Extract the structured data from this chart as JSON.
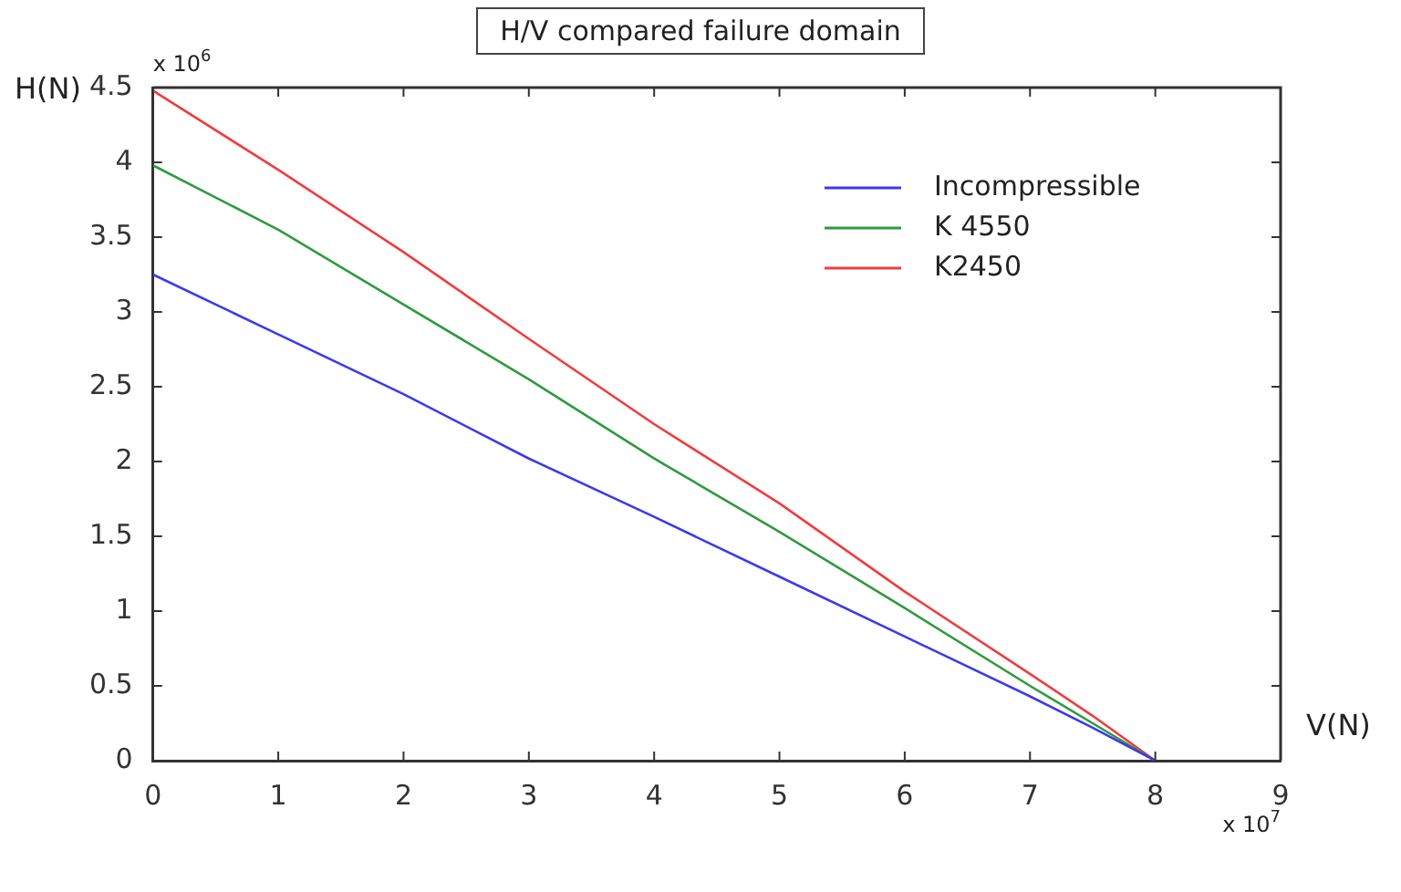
{
  "chart_data": {
    "type": "line",
    "title": "H/V  compared failure domain",
    "xlabel": "V(N)",
    "ylabel": "H(N)",
    "annotations": [
      "x 10$^{6}$",
      "x 10$^{7}$"
    ],
    "x": [
      0,
      1,
      2,
      3,
      4,
      5,
      6,
      7,
      7.5,
      8
    ],
    "series": [
      {
        "name": "Incompressible",
        "color": "#3a3af0",
        "values": [
          3.25,
          2.85,
          2.45,
          2.02,
          1.63,
          1.23,
          0.83,
          0.43,
          0.22,
          0
        ]
      },
      {
        "name": "K 4550",
        "color": "#2e9a3e",
        "values": [
          3.98,
          3.55,
          3.05,
          2.55,
          2.02,
          1.53,
          1.02,
          0.5,
          0.25,
          0
        ]
      },
      {
        "name": "K2450",
        "color": "#f03c3c",
        "values": [
          4.48,
          3.95,
          3.4,
          2.82,
          2.25,
          1.72,
          1.13,
          0.58,
          0.3,
          0
        ]
      }
    ],
    "xlim": [
      0,
      9
    ],
    "xticks": [
      0,
      1,
      2,
      3,
      4,
      5,
      6,
      7,
      8,
      9
    ],
    "ylim": [
      0,
      4.5
    ],
    "yticks": [
      0,
      0.5,
      1,
      1.5,
      2,
      2.5,
      3,
      3.5,
      4,
      4.5
    ],
    "grid": false,
    "legend": "top right",
    "marker": "none",
    "line_style": "solid"
  }
}
